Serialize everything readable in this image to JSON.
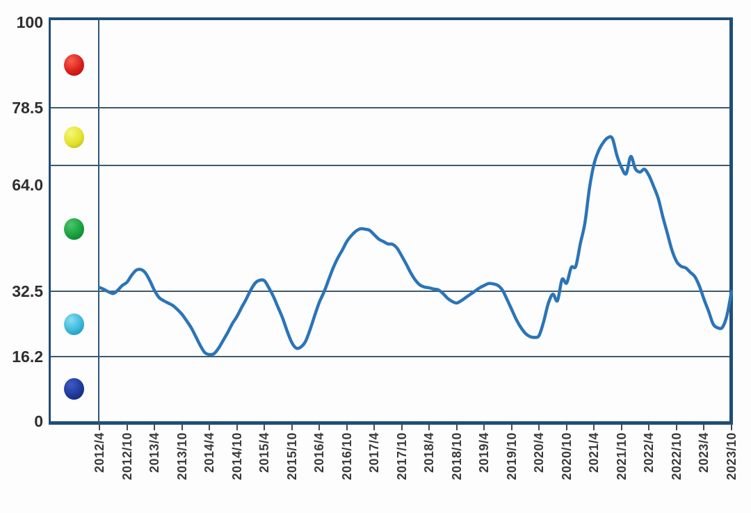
{
  "chart_data": {
    "type": "line",
    "title": "",
    "ylim": [
      0,
      100
    ],
    "y_axis": {
      "tick_labels": [
        "100",
        "78.5",
        "64.0",
        "32.5",
        "16.2",
        "0"
      ],
      "tick_values": [
        100,
        78.5,
        64.0,
        32.5,
        16.2,
        0
      ]
    },
    "gridline_values": [
      78.5,
      64.0,
      32.5,
      16.2
    ],
    "x_axis": {
      "tick_labels": [
        "2012/4",
        "2012/10",
        "2013/4",
        "2013/10",
        "2014/4",
        "2014/10",
        "2015/4",
        "2015/10",
        "2016/4",
        "2016/10",
        "2017/4",
        "2017/10",
        "2018/4",
        "2018/10",
        "2019/4",
        "2019/10",
        "2020/4",
        "2020/10",
        "2021/4",
        "2021/10",
        "2022/4",
        "2022/10",
        "2023/4",
        "2023/10"
      ],
      "start": "2012/4",
      "end": "2023/10",
      "step_months_between_ticks": 6
    },
    "series": [
      {
        "name": "index-line",
        "color": "#2B74B8",
        "x_start": "2012/4",
        "x_interval": "monthly",
        "values": [
          33.5,
          33.0,
          32.4,
          32.0,
          32.8,
          34.0,
          34.8,
          36.5,
          37.8,
          38.0,
          37.2,
          35.2,
          32.8,
          31.0,
          30.2,
          29.6,
          29.0,
          28.0,
          26.8,
          25.2,
          23.5,
          21.3,
          19.0,
          17.2,
          16.7,
          16.9,
          18.3,
          20.2,
          22.2,
          24.4,
          26.2,
          28.4,
          30.5,
          32.8,
          34.6,
          35.3,
          35.2,
          33.4,
          31.2,
          28.5,
          25.8,
          22.5,
          19.7,
          18.3,
          18.6,
          20.0,
          23.0,
          26.5,
          29.8,
          32.3,
          35.3,
          38.3,
          40.8,
          42.8,
          45.0,
          46.5,
          47.6,
          48.2,
          48.1,
          47.8,
          46.7,
          45.6,
          45.0,
          44.4,
          44.3,
          43.3,
          41.4,
          39.3,
          37.1,
          35.3,
          34.1,
          33.6,
          33.4,
          33.1,
          32.9,
          32.0,
          30.8,
          30.0,
          29.6,
          30.2,
          31.0,
          31.8,
          32.6,
          33.4,
          34.0,
          34.5,
          34.4,
          34.0,
          32.8,
          30.5,
          28.0,
          25.5,
          23.5,
          22.0,
          21.2,
          21.0,
          21.5,
          25.0,
          29.5,
          31.8,
          30.2,
          35.5,
          34.6,
          38.5,
          38.8,
          44.5,
          49.7,
          58.5,
          64.5,
          67.8,
          69.8,
          71.0,
          70.8,
          66.5,
          63.5,
          62.0,
          66.3,
          63.2,
          62.4,
          63.1,
          61.5,
          58.8,
          55.8,
          51.2,
          47.0,
          42.8,
          40.0,
          38.8,
          38.4,
          37.3,
          36.2,
          33.8,
          30.5,
          27.5,
          24.3,
          23.4,
          23.5,
          26.5,
          32.5
        ]
      }
    ],
    "zone_markers": [
      {
        "name": "red-ball",
        "band": [
          78.5,
          100
        ],
        "color": "#DB1F1B",
        "light": "#F8604E",
        "dark": "#9E0F0E"
      },
      {
        "name": "yellow-ball",
        "band": [
          64.0,
          78.5
        ],
        "color": "#E4E32B",
        "light": "#F6F67E",
        "dark": "#B0AC12"
      },
      {
        "name": "green-ball",
        "band": [
          32.5,
          64.0
        ],
        "color": "#17A13E",
        "light": "#4CC46C",
        "dark": "#0B6E27"
      },
      {
        "name": "cyan-ball",
        "band": [
          16.2,
          32.5
        ],
        "color": "#38B6DB",
        "light": "#8ADCF0",
        "dark": "#1587AC"
      },
      {
        "name": "navy-ball",
        "band": [
          0,
          16.2
        ],
        "color": "#20389B",
        "light": "#3D5AC4",
        "dark": "#122163"
      }
    ],
    "colors": {
      "frame": "#1F4E79",
      "divider": "#29567A",
      "grid": "#3E5A6B",
      "line": "#2B74B8",
      "tick": "#3E4C57",
      "axis_text": "#2e2e2e"
    },
    "legend_position": "left-strip",
    "grid": "on"
  }
}
